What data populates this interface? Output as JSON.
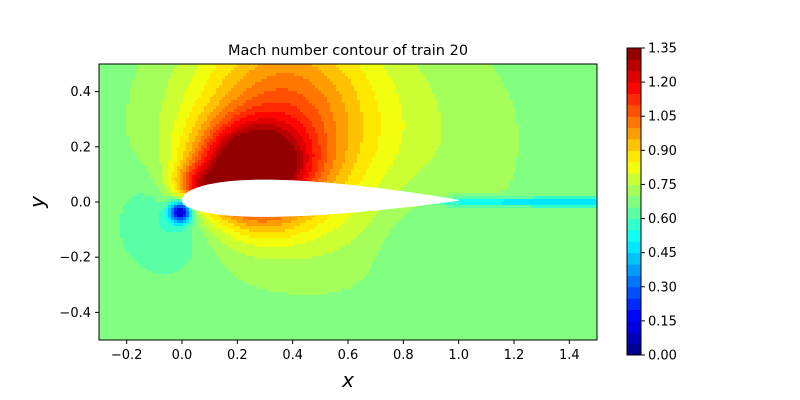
{
  "chart_data": {
    "type": "heatmap",
    "title": "Mach number contour of train 20",
    "xlabel": "x",
    "ylabel": "y",
    "xlim": [
      -0.3,
      1.5
    ],
    "ylim": [
      -0.5,
      0.5
    ],
    "x_ticks": [
      "−0.2",
      "0.0",
      "0.2",
      "0.4",
      "0.6",
      "0.8",
      "1.0",
      "1.2",
      "1.4"
    ],
    "x_tick_values": [
      -0.2,
      0.0,
      0.2,
      0.4,
      0.6,
      0.8,
      1.0,
      1.2,
      1.4
    ],
    "y_ticks": [
      "−0.4",
      "−0.2",
      "0.0",
      "0.2",
      "0.4"
    ],
    "y_tick_values": [
      -0.4,
      -0.2,
      0.0,
      0.2,
      0.4
    ],
    "colormap": "jet",
    "colorbar": {
      "min": 0.0,
      "max": 1.35,
      "levels": 27,
      "ticks": [
        "0.00",
        "0.15",
        "0.30",
        "0.45",
        "0.60",
        "0.75",
        "0.90",
        "1.05",
        "1.20",
        "1.35"
      ],
      "tick_values": [
        0.0,
        0.15,
        0.3,
        0.45,
        0.6,
        0.75,
        0.9,
        1.05,
        1.2,
        1.35
      ]
    },
    "freestream_mach": 0.66,
    "features": [
      {
        "x": 0.27,
        "y": 0.12,
        "mach": 1.3
      },
      {
        "x": 0.0,
        "y": -0.035,
        "mach": 0.05
      },
      {
        "x": 1.05,
        "y": 0.005,
        "mach": 0.45
      }
    ]
  }
}
